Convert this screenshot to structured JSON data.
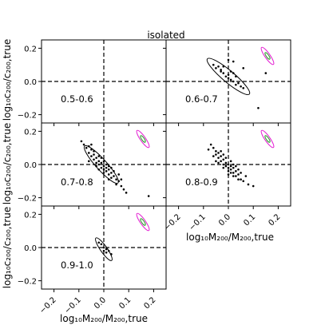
{
  "chart_data": {
    "type": "scatter",
    "title": "isolated",
    "xlabel": "log₁₀M₂₀₀/M₂₀₀,true",
    "ylabel": "log₁₀c₂₀₀/c₂₀₀,true",
    "xlim": [
      -0.25,
      0.25
    ],
    "ylim": [
      -0.25,
      0.25
    ],
    "xticks": [
      "−0.2",
      "−0.1",
      "0.0",
      "0.1",
      "0.2"
    ],
    "yticks": [
      "−0.2",
      "0.0",
      "0.2"
    ],
    "grid": false,
    "panels": [
      {
        "label": "0.5-0.6",
        "points": []
      },
      {
        "label": "0.6-0.7",
        "points": [
          [
            -0.06,
            0.1
          ],
          [
            -0.05,
            0.08
          ],
          [
            -0.04,
            0.09
          ],
          [
            -0.03,
            0.06
          ],
          [
            -0.02,
            0.05
          ],
          [
            -0.01,
            0.03
          ],
          [
            0.0,
            0.02
          ],
          [
            0.01,
            0.01
          ],
          [
            0.02,
            0.0
          ],
          [
            0.03,
            -0.02
          ],
          [
            -0.03,
            0.07
          ],
          [
            0.0,
            0.04
          ],
          [
            0.02,
            0.05
          ],
          [
            0.03,
            0.03
          ],
          [
            0.04,
            -0.01
          ],
          [
            0.05,
            -0.03
          ],
          [
            0.06,
            -0.04
          ],
          [
            0.01,
            0.06
          ],
          [
            -0.02,
            0.09
          ],
          [
            0.0,
            0.13
          ],
          [
            0.02,
            0.12
          ],
          [
            0.15,
            0.05
          ],
          [
            0.12,
            -0.16
          ],
          [
            0.06,
            0.08
          ]
        ],
        "ellipse": {
          "cx": 0.0,
          "cy": 0.03,
          "rx": 0.11,
          "ry": 0.035,
          "angle_deg": -40
        }
      },
      {
        "label": "0.7-0.8",
        "points": [
          [
            -0.08,
            0.12
          ],
          [
            -0.07,
            0.1
          ],
          [
            -0.06,
            0.11
          ],
          [
            -0.06,
            0.07
          ],
          [
            -0.05,
            0.09
          ],
          [
            -0.05,
            0.05
          ],
          [
            -0.04,
            0.06
          ],
          [
            -0.04,
            0.03
          ],
          [
            -0.03,
            0.04
          ],
          [
            -0.03,
            0.01
          ],
          [
            -0.02,
            0.02
          ],
          [
            -0.02,
            0.0
          ],
          [
            -0.01,
            0.01
          ],
          [
            -0.01,
            -0.02
          ],
          [
            0.0,
            -0.01
          ],
          [
            0.0,
            -0.03
          ],
          [
            0.01,
            -0.02
          ],
          [
            0.01,
            -0.04
          ],
          [
            0.02,
            -0.03
          ],
          [
            0.02,
            -0.06
          ],
          [
            0.03,
            -0.05
          ],
          [
            0.03,
            -0.08
          ],
          [
            0.04,
            -0.07
          ],
          [
            0.05,
            -0.09
          ],
          [
            0.06,
            -0.1
          ],
          [
            0.07,
            -0.13
          ],
          [
            0.08,
            -0.15
          ],
          [
            0.09,
            -0.17
          ],
          [
            0.18,
            -0.19
          ],
          [
            -0.09,
            0.14
          ],
          [
            -0.05,
            0.12
          ],
          [
            -0.04,
            0.08
          ],
          [
            -0.02,
            0.05
          ],
          [
            -0.01,
            0.04
          ],
          [
            0.0,
            0.02
          ],
          [
            0.01,
            0.0
          ],
          [
            0.02,
            -0.01
          ],
          [
            0.03,
            -0.02
          ],
          [
            0.04,
            -0.04
          ],
          [
            -0.03,
            -0.01
          ],
          [
            -0.02,
            -0.03
          ],
          [
            0.0,
            -0.05
          ],
          [
            0.05,
            -0.12
          ],
          [
            0.02,
            -0.09
          ],
          [
            -0.06,
            0.02
          ],
          [
            0.06,
            -0.06
          ],
          [
            0.07,
            -0.09
          ]
        ],
        "ellipse": {
          "cx": -0.01,
          "cy": 0.0,
          "rx": 0.1,
          "ry": 0.032,
          "angle_deg": -48
        }
      },
      {
        "label": "0.8-0.9",
        "points": [
          [
            -0.07,
            0.12
          ],
          [
            -0.06,
            0.1
          ],
          [
            -0.05,
            0.08
          ],
          [
            -0.05,
            0.06
          ],
          [
            -0.04,
            0.07
          ],
          [
            -0.04,
            0.04
          ],
          [
            -0.03,
            0.05
          ],
          [
            -0.03,
            0.02
          ],
          [
            -0.02,
            0.03
          ],
          [
            -0.02,
            0.0
          ],
          [
            -0.01,
            0.01
          ],
          [
            -0.01,
            -0.01
          ],
          [
            0.0,
            0.0
          ],
          [
            0.0,
            -0.02
          ],
          [
            0.01,
            -0.01
          ],
          [
            0.01,
            -0.03
          ],
          [
            0.02,
            -0.02
          ],
          [
            0.02,
            -0.05
          ],
          [
            0.03,
            -0.04
          ],
          [
            0.03,
            -0.07
          ],
          [
            0.04,
            -0.06
          ],
          [
            0.05,
            -0.09
          ],
          [
            0.06,
            -0.1
          ],
          [
            0.08,
            -0.12
          ],
          [
            0.1,
            -0.13
          ],
          [
            -0.08,
            0.09
          ],
          [
            -0.06,
            0.05
          ],
          [
            -0.04,
            0.01
          ],
          [
            -0.02,
            -0.02
          ],
          [
            0.0,
            -0.04
          ],
          [
            0.02,
            0.0
          ],
          [
            0.03,
            -0.01
          ],
          [
            0.04,
            -0.03
          ],
          [
            0.05,
            -0.05
          ],
          [
            -0.01,
            0.04
          ],
          [
            -0.03,
            0.08
          ],
          [
            0.01,
            0.02
          ],
          [
            0.02,
            -0.07
          ],
          [
            0.0,
            -0.06
          ],
          [
            -0.02,
            0.06
          ],
          [
            0.04,
            -0.09
          ],
          [
            0.07,
            -0.07
          ],
          [
            -0.05,
            0.02
          ],
          [
            0.01,
            -0.05
          ]
        ],
        "ellipse": null
      },
      {
        "label": "0.9-1.0",
        "points": [
          [
            -0.02,
            0.03
          ],
          [
            -0.01,
            0.02
          ],
          [
            0.0,
            0.0
          ],
          [
            0.01,
            -0.01
          ],
          [
            0.01,
            -0.03
          ],
          [
            0.02,
            -0.02
          ],
          [
            0.03,
            -0.04
          ],
          [
            0.0,
            -0.02
          ]
        ],
        "ellipse": {
          "cx": 0.0,
          "cy": -0.01,
          "rx": 0.055,
          "ry": 0.02,
          "angle_deg": -55
        }
      }
    ],
    "reference_ellipse_colors": {
      "outer": "#e31ad1",
      "inner": "#2ca02c"
    }
  }
}
